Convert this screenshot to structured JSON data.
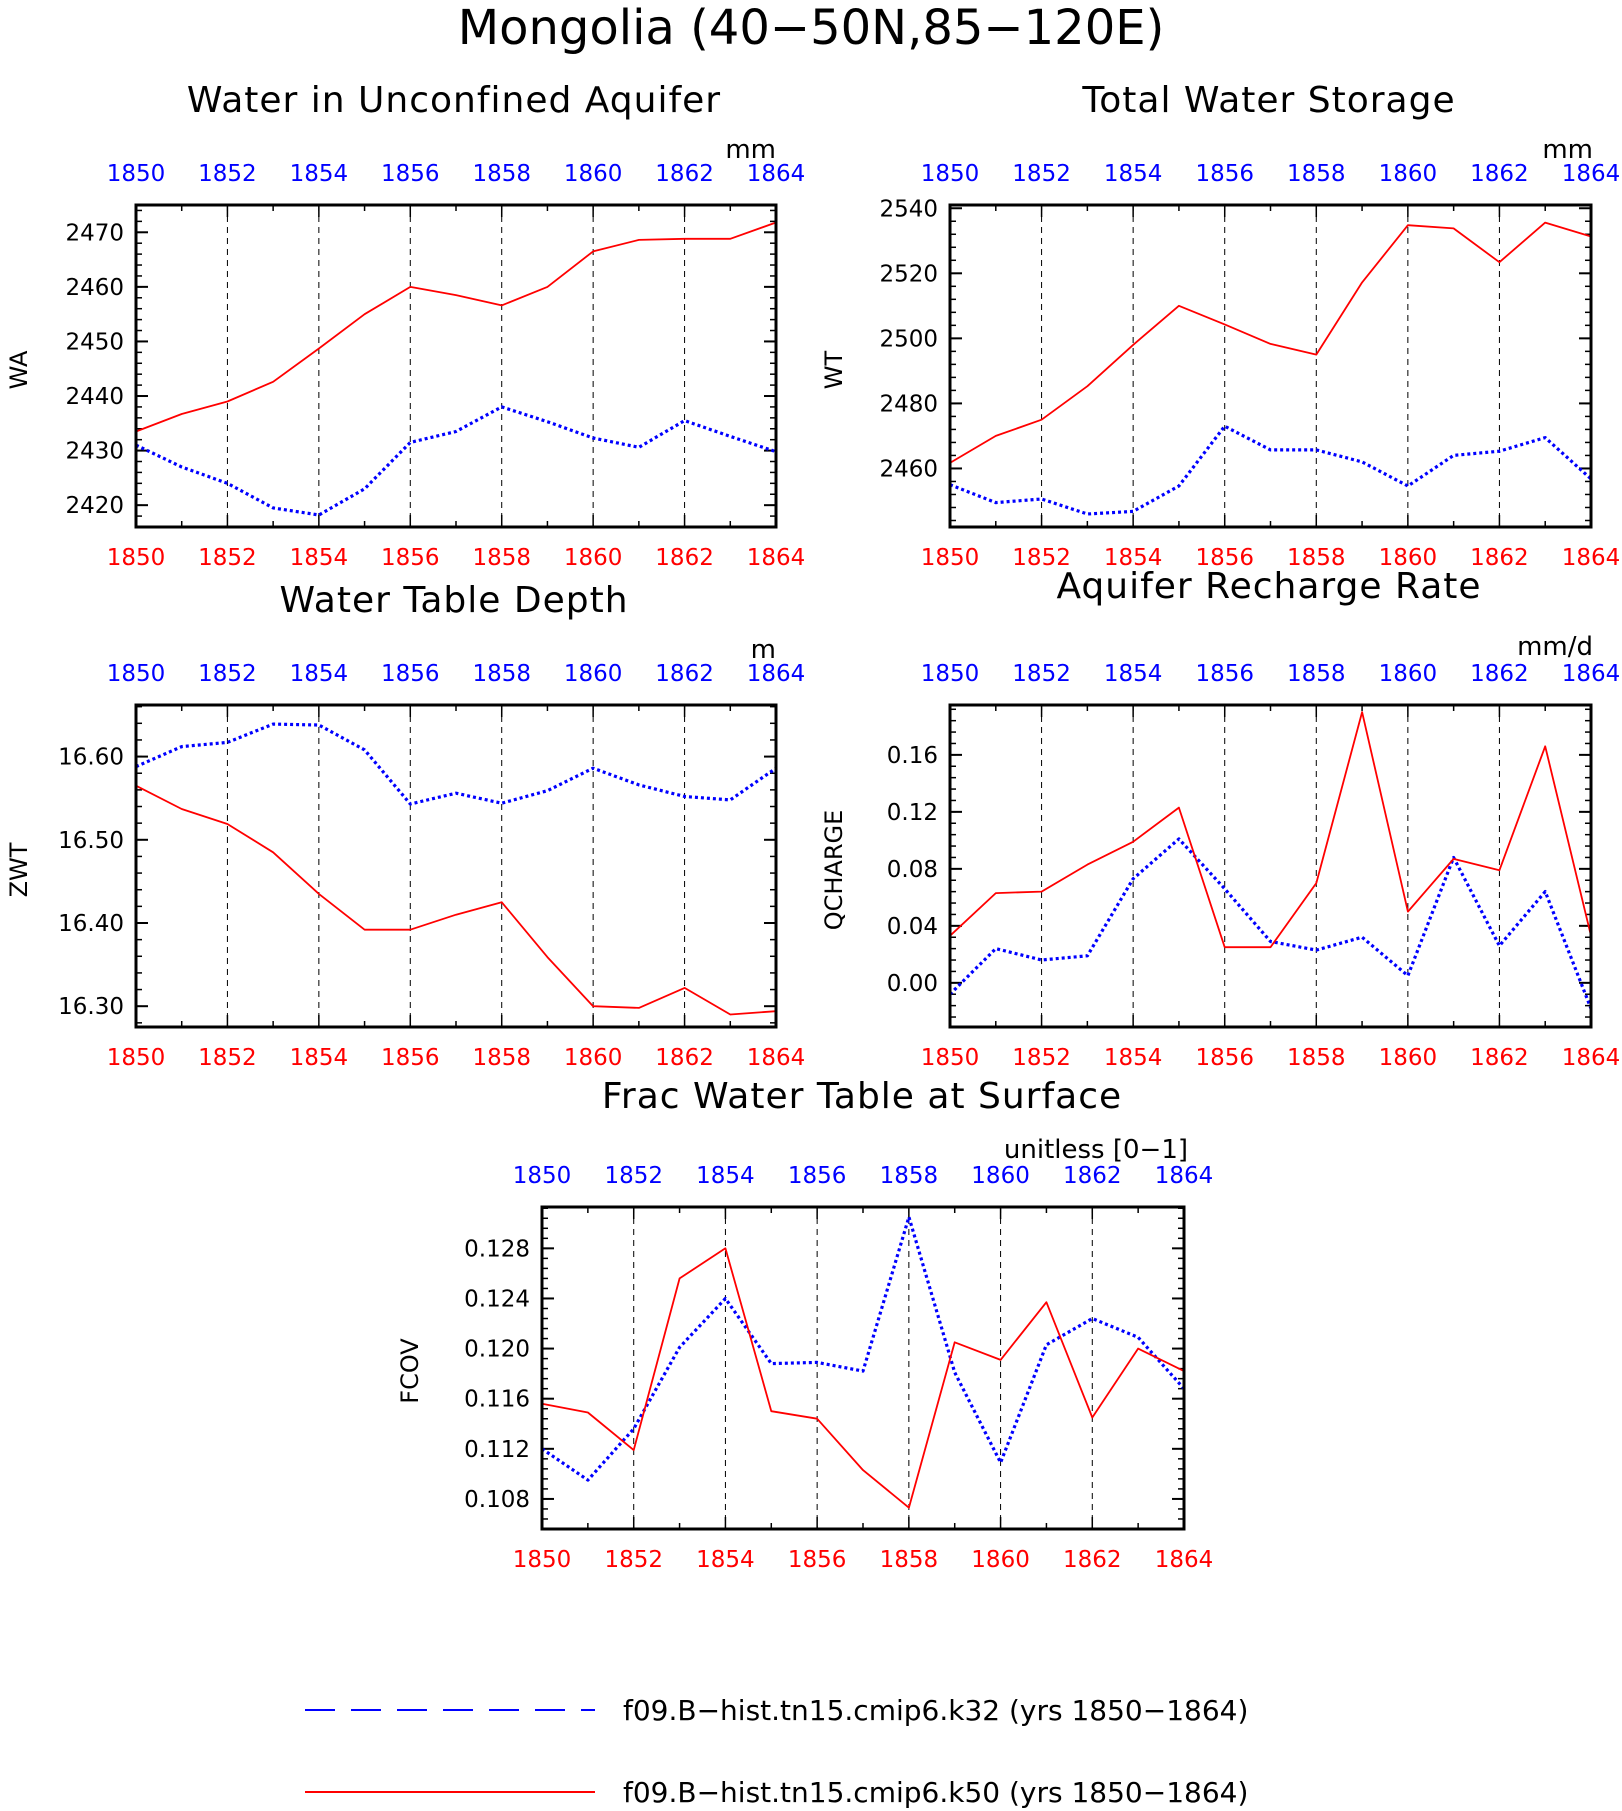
{
  "page": {
    "title": "Mongolia (40−50N,85−120E)",
    "colors": {
      "run_k32": "#0000ff",
      "run_k50": "#ff0000",
      "axis": "#000000",
      "grid": "#000000"
    }
  },
  "legend": {
    "entries": [
      {
        "label": "f09.B−hist.tn15.cmip6.k32 (yrs 1850−1864)",
        "color": "#0000ff",
        "style": "dashed"
      },
      {
        "label": "f09.B−hist.tn15.cmip6.k50 (yrs 1850−1864)",
        "color": "#ff0000",
        "style": "solid"
      }
    ]
  },
  "chart_data": [
    {
      "type": "line",
      "title": "Water in Unconfined Aquifer",
      "units": "mm",
      "ylabel": "WA",
      "x": [
        1850,
        1851,
        1852,
        1853,
        1854,
        1855,
        1856,
        1857,
        1858,
        1859,
        1860,
        1861,
        1862,
        1863,
        1864
      ],
      "xlim": [
        1850,
        1864
      ],
      "ylim": [
        2416,
        2475
      ],
      "yticks": [
        "2420",
        "2430",
        "2440",
        "2450",
        "2460",
        "2470"
      ],
      "grid": "dashed vertical lines at even years",
      "series": [
        {
          "color": "#0000ff",
          "style": "dotted",
          "values": [
            2431,
            2427,
            2424,
            2419.5,
            2418.2,
            2423,
            2431.5,
            2433.5,
            2438,
            2435.3,
            2432.3,
            2430.6,
            2435.5,
            2432.6,
            2429.8
          ]
        },
        {
          "color": "#ff0000",
          "style": "solid",
          "values": [
            2433.5,
            2436.7,
            2439,
            2442.6,
            2448.7,
            2455,
            2460,
            2458.5,
            2456.6,
            2460,
            2466.5,
            2468.6,
            2468.8,
            2468.8,
            2471.8
          ]
        }
      ]
    },
    {
      "type": "line",
      "title": "Total Water Storage",
      "units": "mm",
      "ylabel": "WT",
      "x": [
        1850,
        1851,
        1852,
        1853,
        1854,
        1855,
        1856,
        1857,
        1858,
        1859,
        1860,
        1861,
        1862,
        1863,
        1864
      ],
      "xlim": [
        1850,
        1864
      ],
      "ylim": [
        2442,
        2541
      ],
      "yticks": [
        "2460",
        "2480",
        "2500",
        "2520",
        "2540"
      ],
      "grid": "dashed vertical lines at even years",
      "series": [
        {
          "color": "#0000ff",
          "style": "dotted",
          "values": [
            2455,
            2449.5,
            2450.6,
            2446,
            2446.8,
            2454.6,
            2473,
            2465.7,
            2465.7,
            2462,
            2454.6,
            2464,
            2465.3,
            2469.5,
            2456.8
          ]
        },
        {
          "color": "#ff0000",
          "style": "solid",
          "values": [
            2461.7,
            2470,
            2475,
            2485.3,
            2498,
            2510,
            2504.3,
            2498.3,
            2495,
            2517.2,
            2534.8,
            2533.8,
            2523.4,
            2535.6,
            2531.3
          ]
        }
      ]
    },
    {
      "type": "line",
      "title": "Water Table Depth",
      "units": "m",
      "ylabel": "ZWT",
      "x": [
        1850,
        1851,
        1852,
        1853,
        1854,
        1855,
        1856,
        1857,
        1858,
        1859,
        1860,
        1861,
        1862,
        1863,
        1864
      ],
      "xlim": [
        1850,
        1864
      ],
      "ylim": [
        16.275,
        16.662
      ],
      "yticks": [
        "16.30",
        "16.40",
        "16.50",
        "16.60"
      ],
      "grid": "dashed vertical lines at even years",
      "series": [
        {
          "color": "#0000ff",
          "style": "dotted",
          "values": [
            16.588,
            16.612,
            16.617,
            16.639,
            16.638,
            16.608,
            16.543,
            16.556,
            16.544,
            16.559,
            16.586,
            16.566,
            16.552,
            16.548,
            16.586
          ]
        },
        {
          "color": "#ff0000",
          "style": "solid",
          "values": [
            16.565,
            16.537,
            16.519,
            16.485,
            16.435,
            16.392,
            16.392,
            16.41,
            16.425,
            16.359,
            16.3,
            16.298,
            16.322,
            16.29,
            16.294
          ]
        }
      ]
    },
    {
      "type": "line",
      "title": "Aquifer Recharge Rate",
      "units": "mm/d",
      "ylabel": "QCHARGE",
      "x": [
        1850,
        1851,
        1852,
        1853,
        1854,
        1855,
        1856,
        1857,
        1858,
        1859,
        1860,
        1861,
        1862,
        1863,
        1864
      ],
      "xlim": [
        1850,
        1864
      ],
      "ylim": [
        -0.031,
        0.195
      ],
      "yticks": [
        "0.00",
        "0.04",
        "0.08",
        "0.12",
        "0.16"
      ],
      "grid": "dashed vertical lines at even years",
      "series": [
        {
          "color": "#0000ff",
          "style": "dotted",
          "values": [
            -0.008,
            0.024,
            0.016,
            0.019,
            0.073,
            0.101,
            0.066,
            0.029,
            0.023,
            0.032,
            0.005,
            0.088,
            0.026,
            0.064,
            -0.018
          ]
        },
        {
          "color": "#ff0000",
          "style": "solid",
          "values": [
            0.033,
            0.063,
            0.064,
            0.083,
            0.099,
            0.123,
            0.025,
            0.025,
            0.07,
            0.19,
            0.05,
            0.087,
            0.079,
            0.166,
            0.033
          ]
        }
      ]
    },
    {
      "type": "line",
      "title": "Frac Water Table at Surface",
      "units": "unitless [0−1]",
      "ylabel": "FCOV",
      "x": [
        1850,
        1851,
        1852,
        1853,
        1854,
        1855,
        1856,
        1857,
        1858,
        1859,
        1860,
        1861,
        1862,
        1863,
        1864
      ],
      "xlim": [
        1850,
        1864
      ],
      "ylim": [
        0.1056,
        0.1313
      ],
      "yticks": [
        "0.108",
        "0.112",
        "0.116",
        "0.120",
        "0.124",
        "0.128"
      ],
      "grid": "dashed vertical lines at even years",
      "series": [
        {
          "color": "#0000ff",
          "style": "dotted",
          "values": [
            0.112,
            0.1095,
            0.1136,
            0.1201,
            0.124,
            0.1188,
            0.1189,
            0.1182,
            0.1305,
            0.1181,
            0.1109,
            0.1203,
            0.1224,
            0.1209,
            0.1168
          ]
        },
        {
          "color": "#ff0000",
          "style": "solid",
          "values": [
            0.1156,
            0.1149,
            0.1119,
            0.1256,
            0.128,
            0.115,
            0.1144,
            0.1103,
            0.1073,
            0.1205,
            0.1191,
            0.1237,
            0.1145,
            0.12,
            0.1182
          ]
        }
      ]
    }
  ]
}
